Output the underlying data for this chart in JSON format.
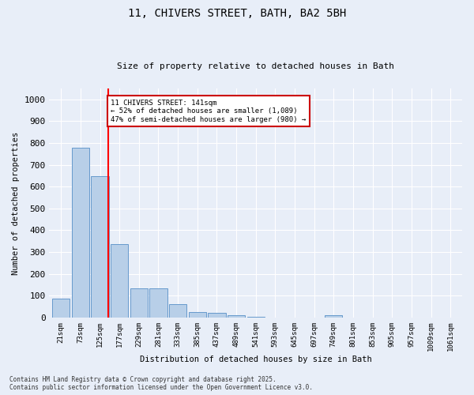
{
  "title_line1": "11, CHIVERS STREET, BATH, BA2 5BH",
  "title_line2": "Size of property relative to detached houses in Bath",
  "xlabel": "Distribution of detached houses by size in Bath",
  "ylabel": "Number of detached properties",
  "bar_labels": [
    "21sqm",
    "73sqm",
    "125sqm",
    "177sqm",
    "229sqm",
    "281sqm",
    "333sqm",
    "385sqm",
    "437sqm",
    "489sqm",
    "541sqm",
    "593sqm",
    "645sqm",
    "697sqm",
    "749sqm",
    "801sqm",
    "853sqm",
    "905sqm",
    "957sqm",
    "1009sqm",
    "1061sqm"
  ],
  "bar_values": [
    85,
    780,
    648,
    335,
    133,
    133,
    60,
    25,
    20,
    10,
    5,
    0,
    0,
    0,
    10,
    0,
    0,
    0,
    0,
    0,
    0
  ],
  "bar_color": "#b8cfe8",
  "bar_edge_color": "#6699cc",
  "background_color": "#e8eef8",
  "grid_color": "#ffffff",
  "red_line_x": 2.42,
  "annotation_text": "11 CHIVERS STREET: 141sqm\n← 52% of detached houses are smaller (1,089)\n47% of semi-detached houses are larger (980) →",
  "annotation_box_color": "#ffffff",
  "annotation_box_edge_color": "#cc0000",
  "ylim": [
    0,
    1050
  ],
  "yticks": [
    0,
    100,
    200,
    300,
    400,
    500,
    600,
    700,
    800,
    900,
    1000
  ],
  "footer_line1": "Contains HM Land Registry data © Crown copyright and database right 2025.",
  "footer_line2": "Contains public sector information licensed under the Open Government Licence v3.0."
}
